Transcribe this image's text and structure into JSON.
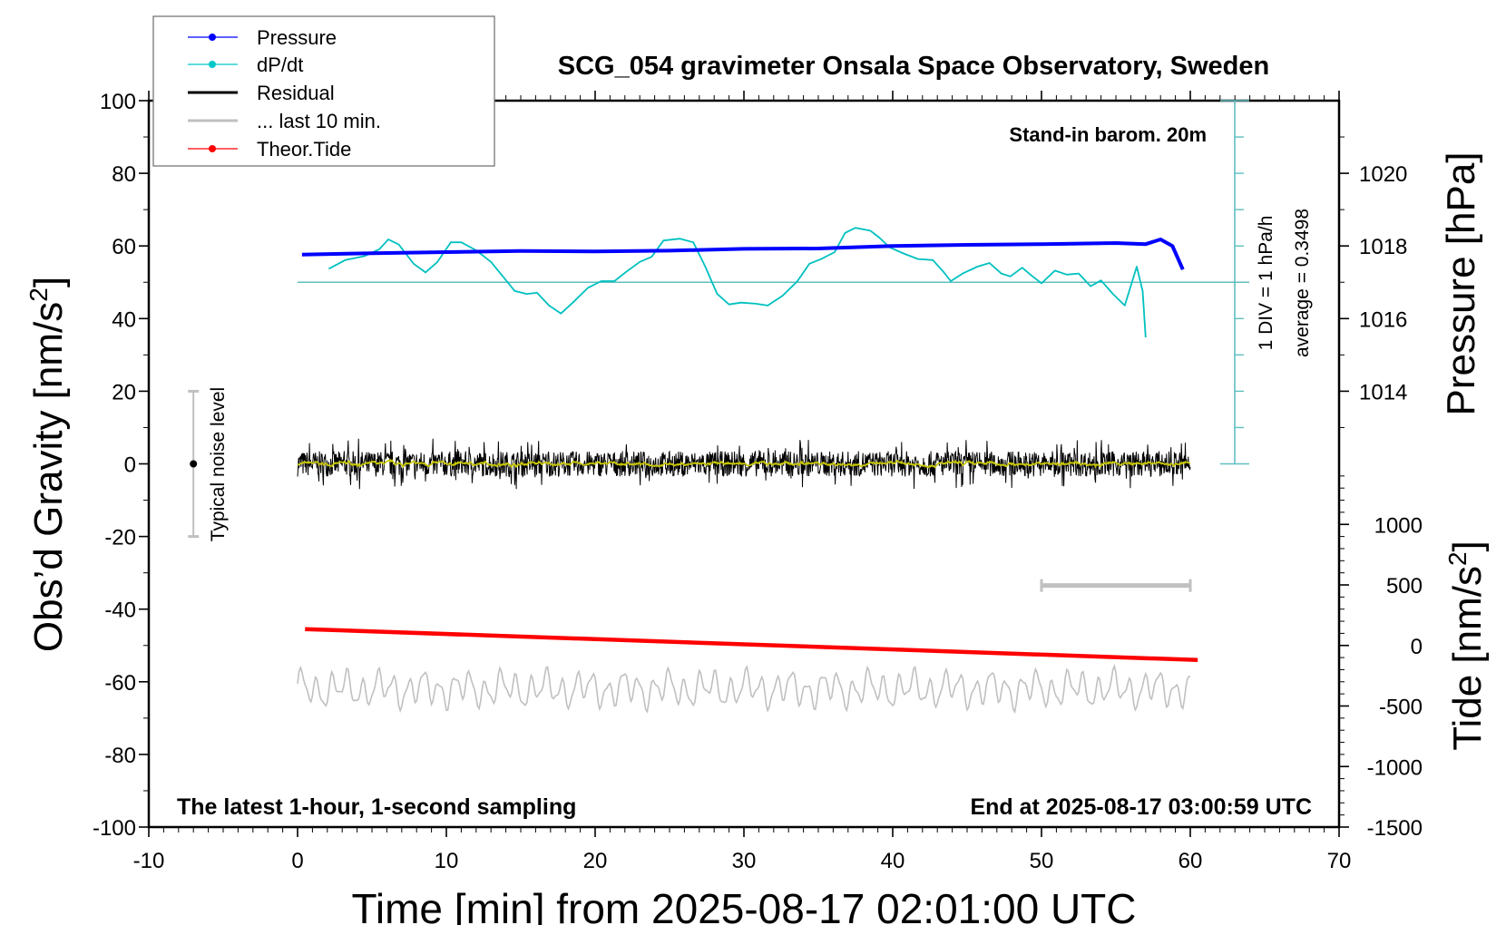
{
  "chart_data": {
    "type": "line",
    "title": "SCG_054 gravimeter Onsala Space Observatory, Sweden",
    "subtitle_top_right": "Stand-in barom. 20m",
    "note_bottom_left": "The latest 1-hour, 1-second sampling",
    "note_bottom_right": "End at 2025-08-17 03:00:59 UTC",
    "xlabel": "Time [min] from 2025-08-17 02:01:00 UTC",
    "ylabel_left": "Obs’d Gravity [nm/s",
    "ylabel_right_pressure": "Pressure [hPa]",
    "ylabel_right_tide": "Tide [nm/s",
    "superscript": "2",
    "xlim": [
      -10,
      70
    ],
    "ylim": [
      -100,
      100
    ],
    "x_ticks": [
      "-10",
      "0",
      "10",
      "20",
      "30",
      "40",
      "50",
      "60",
      "70"
    ],
    "y_ticks": [
      "100",
      "80",
      "60",
      "40",
      "20",
      "0",
      "-20",
      "-40",
      "-60",
      "-80",
      "-100"
    ],
    "pressure_ticks": [
      "1020",
      "1018",
      "1016",
      "1014"
    ],
    "tide_ticks": [
      "1000",
      "500",
      "0",
      "-500",
      "-1000",
      "-1500"
    ],
    "dpdt_axis": {
      "label": "1 DIV = 1 hPa/h",
      "average_label": "average = 0.3498",
      "average": 0.3498
    },
    "noise_label": "Typical noise level",
    "noise_level": {
      "x": -7,
      "center": 0,
      "low": -20,
      "high": 20
    },
    "last_10_min_bar": {
      "from": 50,
      "to": 60,
      "y": -33.5
    },
    "legend": [
      {
        "name": "Pressure",
        "color": "#0000ff",
        "marker": true
      },
      {
        "name": "dP/dt",
        "color": "#00c8c8",
        "marker": true
      },
      {
        "name": "Residual",
        "color": "#000000",
        "marker": false
      },
      {
        "name": "... last 10 min.",
        "color": "#c0c0c0",
        "marker": false
      },
      {
        "name": "Theor.Tide",
        "color": "#ff0000",
        "marker": true
      }
    ],
    "colors": {
      "pressure": "#0000ff",
      "dpdt": "#00c0c0",
      "dpdt_axis": "#5fbfbf",
      "residual": "#000000",
      "residual_smooth": "#c8c800",
      "last10": "#c0c0c0",
      "tide": "#ff0000"
    },
    "series": {
      "pressure_hPa": {
        "x": [
          0.3,
          5,
          10,
          15,
          20,
          25,
          30,
          35,
          40,
          45,
          50,
          55,
          57,
          58,
          58.8,
          59.5
        ],
        "y": [
          1017.76,
          1017.8,
          1017.83,
          1017.86,
          1017.85,
          1017.87,
          1017.92,
          1017.93,
          1018.0,
          1018.03,
          1018.05,
          1018.08,
          1018.05,
          1018.18,
          1018.0,
          1017.35
        ]
      },
      "dpdt_hPa_per_h": {
        "x": [
          2.1,
          3.2,
          4.5,
          5.5,
          6.1,
          6.8,
          7.8,
          8.6,
          9.4,
          10.3,
          11.0,
          12.0,
          13.0,
          13.8,
          14.6,
          15.4,
          16.1,
          16.9,
          17.7,
          18.5,
          19.5,
          20.4,
          21.3,
          22.1,
          23.0,
          23.8,
          24.6,
          25.7,
          26.6,
          27.4,
          28.2,
          29.0,
          29.8,
          30.8,
          31.6,
          32.6,
          33.6,
          34.4,
          35.2,
          36.1,
          36.8,
          37.5,
          38.5,
          39.1,
          39.8,
          40.8,
          41.7,
          42.7,
          43.4,
          43.9,
          44.7,
          45.7,
          46.5,
          47.3,
          47.9,
          48.7,
          49.4,
          50.0,
          50.9,
          51.7,
          52.5,
          53.3,
          54.0,
          54.8,
          55.6,
          56.4,
          56.8,
          57.0
        ],
        "y": [
          0.72,
          0.96,
          1.07,
          1.26,
          1.53,
          1.39,
          0.86,
          0.62,
          0.91,
          1.45,
          1.45,
          1.23,
          0.91,
          0.51,
          0.11,
          0.03,
          0.06,
          -0.29,
          -0.51,
          -0.21,
          0.19,
          0.38,
          0.38,
          0.64,
          0.91,
          1.05,
          1.5,
          1.55,
          1.45,
          0.78,
          0.03,
          -0.26,
          -0.21,
          -0.24,
          -0.29,
          -0.02,
          0.38,
          0.86,
          0.99,
          1.18,
          1.71,
          1.85,
          1.77,
          1.58,
          1.31,
          1.13,
          0.99,
          0.96,
          0.64,
          0.38,
          0.59,
          0.78,
          0.88,
          0.59,
          0.51,
          0.75,
          0.51,
          0.32,
          0.67,
          0.56,
          0.59,
          0.24,
          0.4,
          0.03,
          -0.29,
          0.78,
          0.11,
          -1.17
        ]
      },
      "residual_nm_s2": {
        "x_range": [
          0,
          60
        ],
        "mean": 0,
        "amplitude": 5
      },
      "last_10_min_nm_s2": {
        "x_range": [
          0,
          60
        ],
        "mean": -62,
        "amplitude": 5
      },
      "tide_nm_s2": {
        "x": [
          0.5,
          60.5
        ],
        "y": [
          135,
          -120
        ]
      }
    }
  }
}
